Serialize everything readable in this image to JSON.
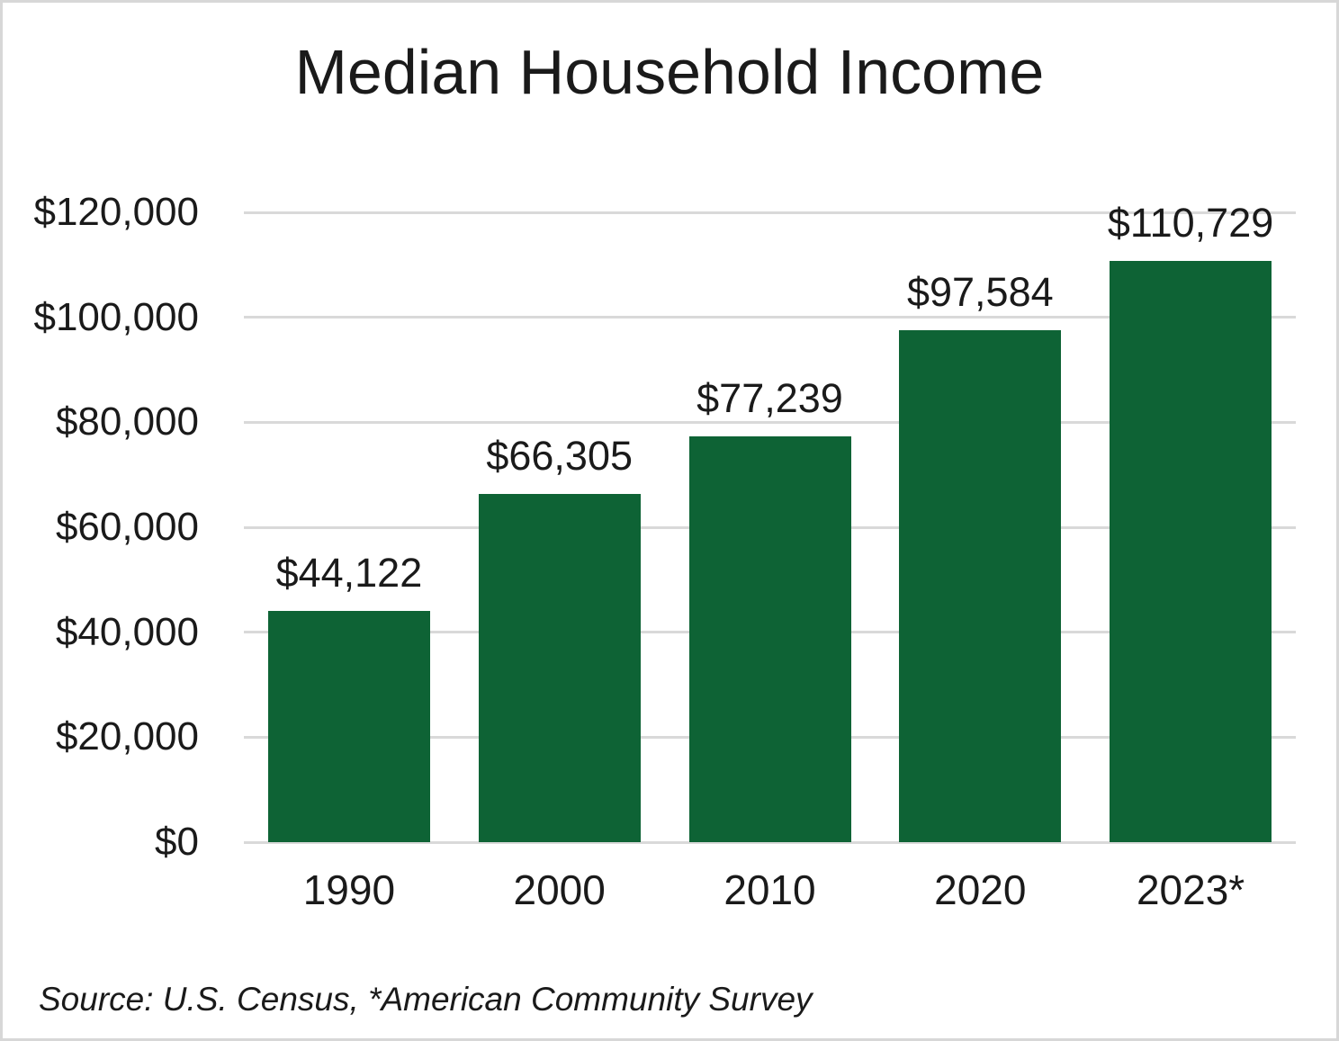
{
  "title": "Median Household Income",
  "source_note": "Source: U.S. Census, *American Community Survey",
  "colors": {
    "bar": "#0e6335",
    "gridline": "#d9d9d9",
    "text": "#1a1a1a",
    "frame_border": "#d7d7d7",
    "background": "#ffffff"
  },
  "chart_data": {
    "type": "bar",
    "title": "Median Household Income",
    "categories": [
      "1990",
      "2000",
      "2010",
      "2020",
      "2023*"
    ],
    "values": [
      44122,
      66305,
      77239,
      97584,
      110729
    ],
    "value_labels": [
      "$44,122",
      "$66,305",
      "$77,239",
      "$97,584",
      "$110,729"
    ],
    "xlabel": "",
    "ylabel": "",
    "ylim": [
      0,
      120000
    ],
    "y_tick_interval": 20000,
    "y_tick_labels": [
      "$0",
      "$20,000",
      "$40,000",
      "$60,000",
      "$80,000",
      "$100,000",
      "$120,000"
    ],
    "grid": "horizontal",
    "legend": "none",
    "bar_color": "#0e6335"
  }
}
